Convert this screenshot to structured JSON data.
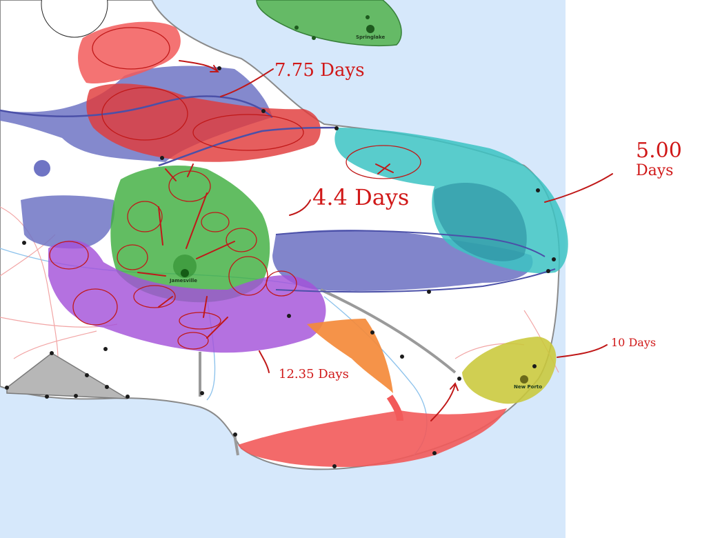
{
  "towns": {
    "springlake": "Springlake",
    "jamesville": "Jamesville",
    "new_porto": "New Porto"
  },
  "annotations": {
    "north": "7.75 Days",
    "central": "4.4 Days",
    "east_line1": "5.00",
    "east_line2": "Days",
    "south": "12.35 Days",
    "southeast": "10 Days"
  },
  "colors": {
    "water": "#d6e8fb",
    "land": "#ffffff",
    "annotation_red": "#d01818",
    "zone_red": "#f25a5a",
    "zone_blue": "#6f74c4",
    "zone_green": "#3fae3f",
    "zone_teal": "#3cc3c3",
    "zone_purple": "#a352d9",
    "zone_orange": "#f48a3a",
    "zone_yellow": "#c9c83a",
    "zone_gray": "#a8a8a8"
  }
}
